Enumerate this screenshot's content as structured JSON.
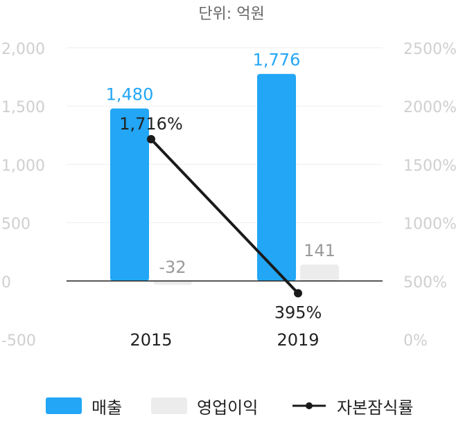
{
  "unit_label": "단위: 억원",
  "colors": {
    "revenue": "#22a6f5",
    "operating_profit": "#ececec",
    "capital_ratio": "#1a1a1a",
    "axis_text": "#cfcfcf",
    "gridline": "#eeeeee"
  },
  "chart_data": {
    "type": "bar",
    "categories": [
      "2015",
      "2019"
    ],
    "series": [
      {
        "name": "매출",
        "values": [
          1480,
          1776
        ],
        "value_labels": [
          "1,480",
          "1,776"
        ],
        "axis": "left",
        "kind": "bar"
      },
      {
        "name": "영업이익",
        "values": [
          -32,
          141
        ],
        "value_labels": [
          "-32",
          "141"
        ],
        "axis": "left",
        "kind": "bar"
      },
      {
        "name": "자본잠식률",
        "values": [
          1716,
          395
        ],
        "value_labels": [
          "1,716%",
          "395%"
        ],
        "axis": "right",
        "kind": "line"
      }
    ],
    "ylim": [
      -500,
      2000
    ],
    "yticks": [
      -500,
      0,
      500,
      1000,
      1500,
      2000
    ],
    "ytick_labels": [
      "-500",
      "0",
      "500",
      "1,000",
      "1,500",
      "2,000"
    ],
    "y2lim": [
      0,
      2500
    ],
    "y2ticks": [
      0,
      500,
      1000,
      1500,
      2000,
      2500
    ],
    "y2tick_labels": [
      "0%",
      "500%",
      "1000%",
      "1500%",
      "2000%",
      "2500%"
    ],
    "grid": true,
    "legend_position": "bottom"
  }
}
